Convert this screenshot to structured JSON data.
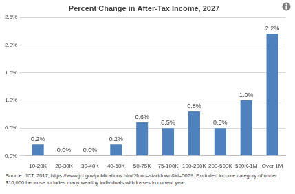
{
  "chart_data": {
    "type": "bar",
    "title": "Percent Change in After-Tax Income, 2027",
    "categories": [
      "10-20K",
      "20-30K",
      "30-40K",
      "40-50K",
      "50-75K",
      "75-100K",
      "100-200K",
      "200-500K",
      "500K-1M",
      "Over 1M"
    ],
    "values": [
      0.2,
      0.0,
      0.0,
      0.2,
      0.6,
      0.5,
      0.8,
      0.5,
      1.0,
      2.2
    ],
    "value_labels": [
      "0.2%",
      "0.0%",
      "0.0%",
      "0.2%",
      "0.6%",
      "0.5%",
      "0.8%",
      "0.5%",
      "1.0%",
      "2.2%"
    ],
    "data_labels": true,
    "color": "#4f81bd",
    "ylim": [
      0,
      2.5
    ],
    "yticks": [
      {
        "value": 0,
        "label": "0.0%"
      },
      {
        "value": 0.5,
        "label": "0.5%"
      },
      {
        "value": 1.0,
        "label": "1.0%"
      },
      {
        "value": 1.5,
        "label": "1.5%"
      },
      {
        "value": 2.0,
        "label": "2.0%"
      },
      {
        "value": 2.5,
        "label": "2.5%"
      }
    ],
    "grid": true,
    "annotations": [
      "Source: JCT, 2017, https://www.jct.gov/publications.html?func=startdown&id=5029. Excluded income category of under $10,000 because includes many wealthy individuals with losses in current year."
    ]
  }
}
